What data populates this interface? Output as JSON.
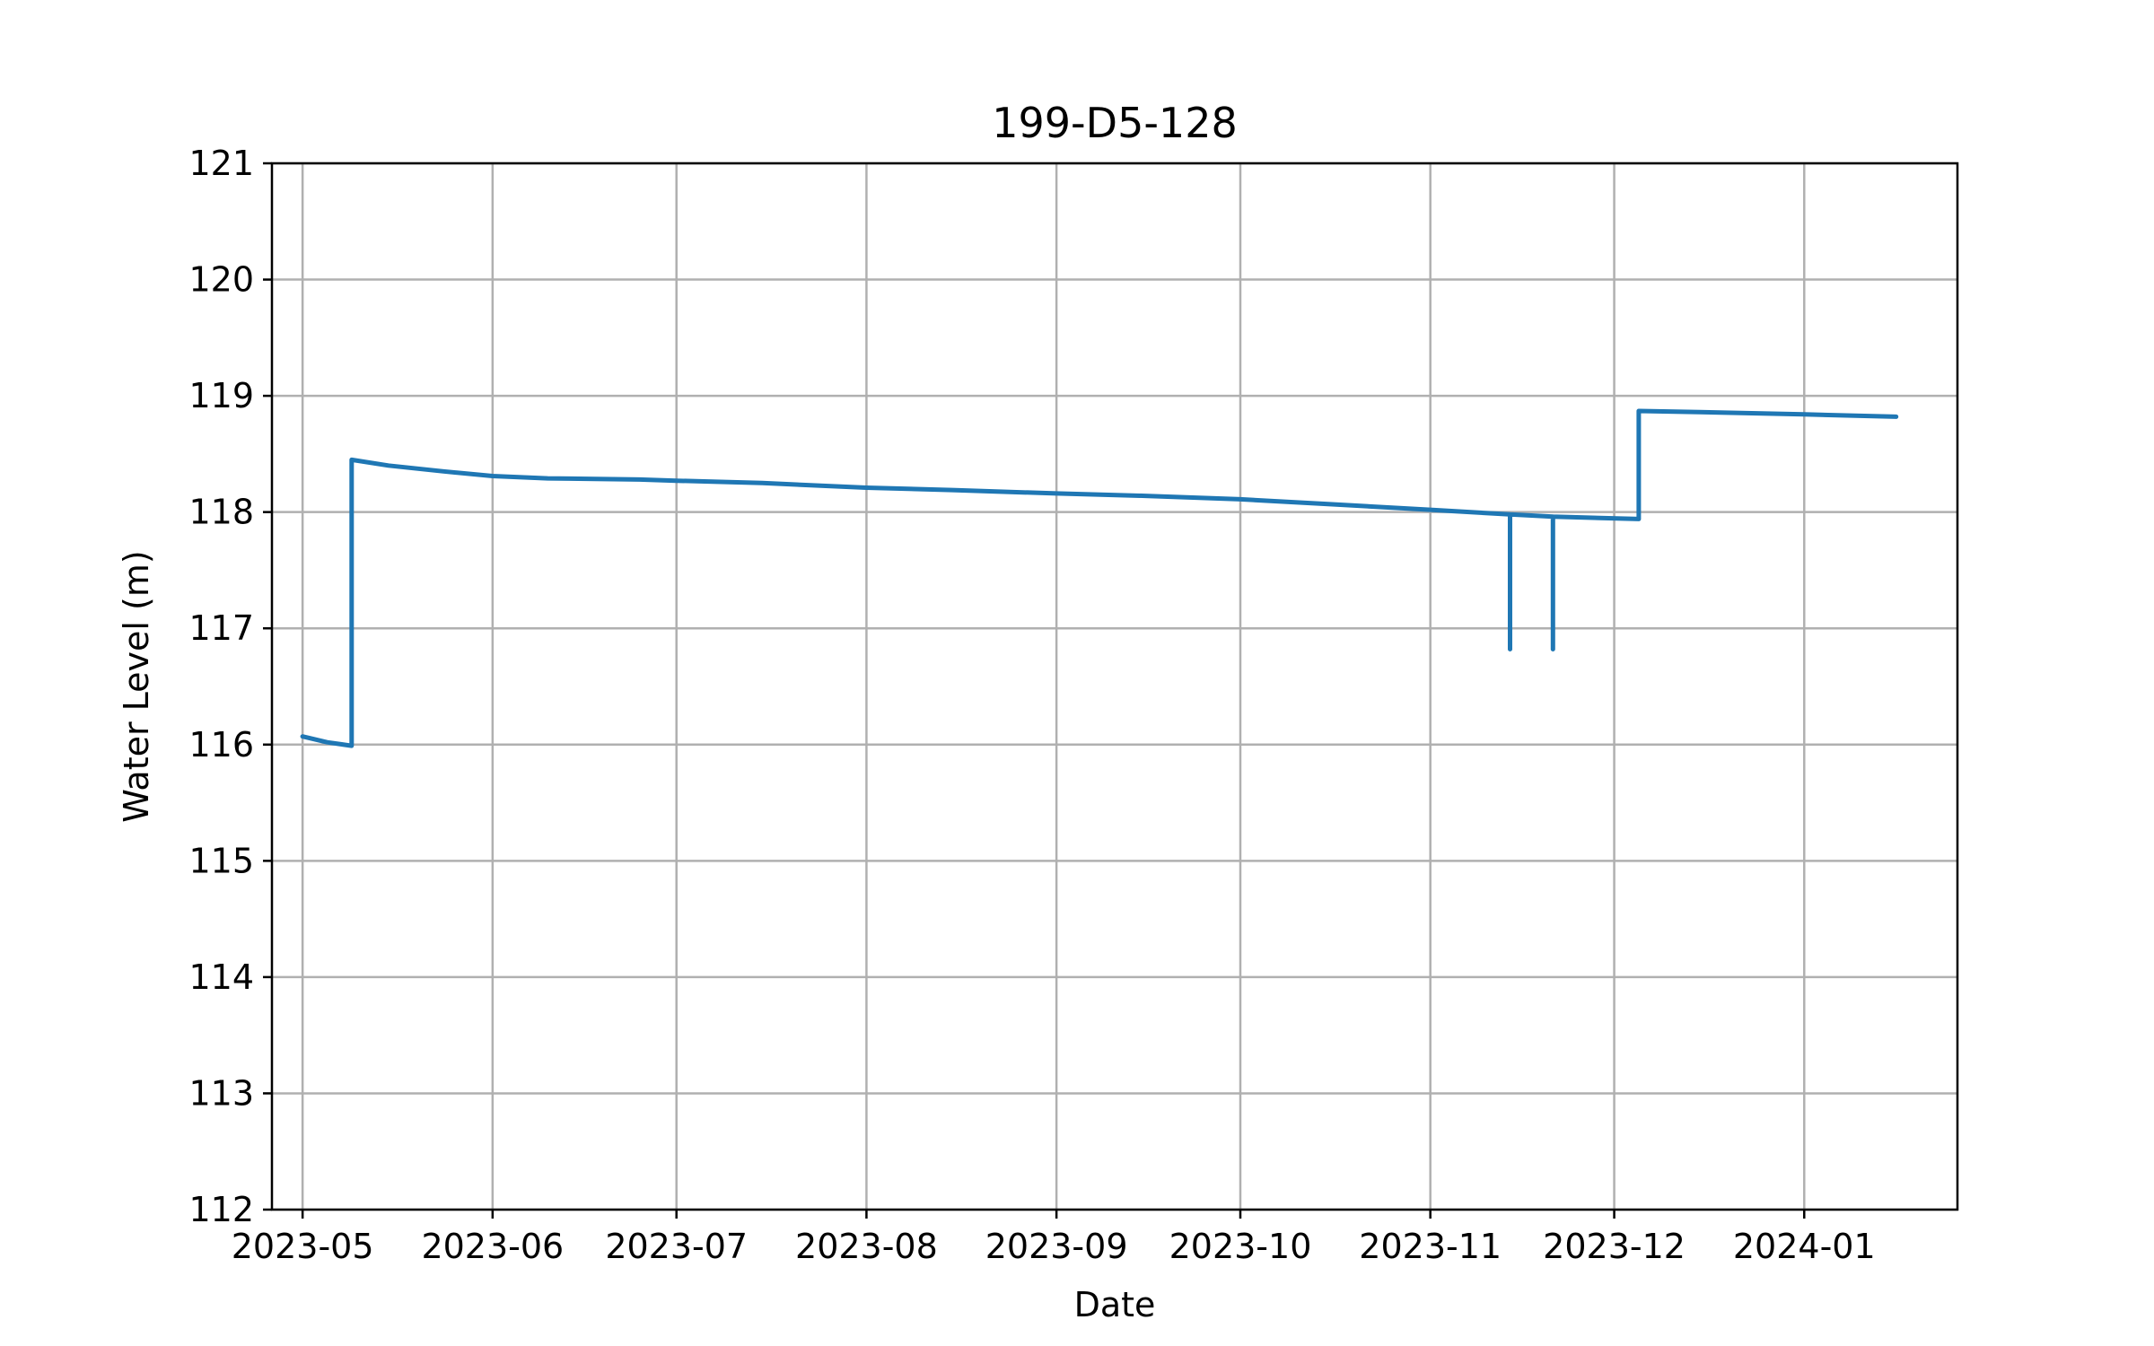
{
  "chart_data": {
    "type": "line",
    "title": "199-D5-128",
    "xlabel": "Date",
    "ylabel": "Water Level (m)",
    "xlim": [
      "2023-04-26",
      "2024-01-26"
    ],
    "ylim": [
      112,
      121
    ],
    "x_ticks": [
      "2023-05-01",
      "2023-06-01",
      "2023-07-01",
      "2023-08-01",
      "2023-09-01",
      "2023-10-01",
      "2023-11-01",
      "2023-12-01",
      "2024-01-01"
    ],
    "x_tick_labels": [
      "2023-05",
      "2023-06",
      "2023-07",
      "2023-08",
      "2023-09",
      "2023-10",
      "2023-11",
      "2023-12",
      "2024-01"
    ],
    "y_ticks": [
      112,
      113,
      114,
      115,
      116,
      117,
      118,
      119,
      120,
      121
    ],
    "y_tick_labels": [
      "112",
      "113",
      "114",
      "115",
      "116",
      "117",
      "118",
      "119",
      "120",
      "121"
    ],
    "grid": true,
    "color": "#1f77b4",
    "series": [
      {
        "x": [
          "2023-05-01",
          "2023-05-05",
          "2023-05-09",
          "2023-05-09",
          "2023-05-15",
          "2023-05-24",
          "2023-06-01",
          "2023-06-10",
          "2023-06-25",
          "2023-07-01",
          "2023-07-15",
          "2023-08-01",
          "2023-08-15",
          "2023-09-01",
          "2023-09-15",
          "2023-10-01",
          "2023-10-15",
          "2023-11-01",
          "2023-11-14",
          "2023-11-14",
          "2023-11-14",
          "2023-11-21",
          "2023-11-21",
          "2023-11-21",
          "2023-12-05",
          "2023-12-05",
          "2023-12-15",
          "2024-01-01",
          "2024-01-16"
        ],
        "y": [
          116.07,
          116.02,
          115.99,
          118.45,
          118.4,
          118.35,
          118.31,
          118.29,
          118.28,
          118.27,
          118.25,
          118.21,
          118.19,
          118.16,
          118.14,
          118.11,
          118.07,
          118.02,
          117.98,
          116.82,
          117.98,
          117.96,
          116.82,
          117.96,
          117.94,
          118.87,
          118.86,
          118.84,
          118.82
        ]
      }
    ]
  }
}
